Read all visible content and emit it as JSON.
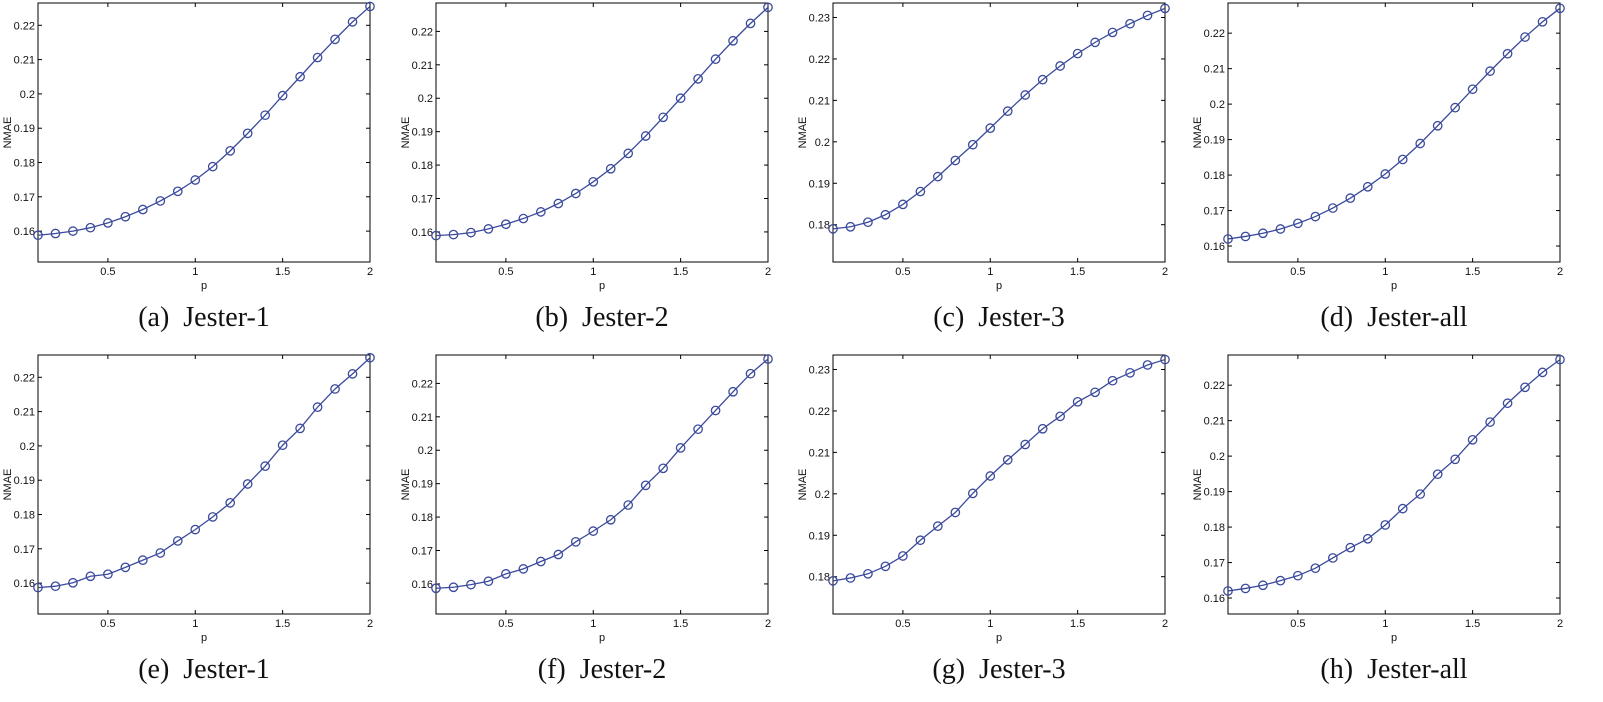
{
  "chart_data": [
    {
      "type": "line",
      "caption": "(a)  Jester-1",
      "xlabel": "p",
      "ylabel": "NMAE",
      "xlim": [
        0.1,
        2.0
      ],
      "ylim": [
        0.151,
        0.2265
      ],
      "xticks": [
        0.5,
        1,
        1.5,
        2
      ],
      "xtick_labels": [
        "0.5",
        "1",
        "1.5",
        "2"
      ],
      "yticks": [
        0.16,
        0.17,
        0.18,
        0.19,
        0.2,
        0.21,
        0.22
      ],
      "ytick_labels": [
        "0.16",
        "0.17",
        "0.18",
        "0.19",
        "0.2",
        "0.21",
        "0.22"
      ],
      "marker": "circle",
      "color": "#3b4a9c",
      "series": [
        {
          "x": [
            0.1,
            0.2,
            0.3,
            0.4,
            0.5,
            0.6,
            0.7,
            0.8,
            0.9,
            1.0,
            1.1,
            1.2,
            1.3,
            1.4,
            1.5,
            1.6,
            1.7,
            1.8,
            1.9,
            2.0
          ],
          "values": [
            0.1588,
            0.1593,
            0.16,
            0.161,
            0.1624,
            0.1642,
            0.1663,
            0.1688,
            0.1716,
            0.1749,
            0.1788,
            0.1834,
            0.1885,
            0.1938,
            0.1995,
            0.205,
            0.2106,
            0.2159,
            0.221,
            0.2255
          ]
        }
      ]
    },
    {
      "type": "line",
      "caption": "(b)  Jester-2",
      "xlabel": "p",
      "ylabel": "NMAE",
      "xlim": [
        0.1,
        2.0
      ],
      "ylim": [
        0.151,
        0.2285
      ],
      "xticks": [
        0.5,
        1,
        1.5,
        2
      ],
      "xtick_labels": [
        "0.5",
        "1",
        "1.5",
        "2"
      ],
      "yticks": [
        0.16,
        0.17,
        0.18,
        0.19,
        0.2,
        0.21,
        0.22
      ],
      "ytick_labels": [
        "0.16",
        "0.17",
        "0.18",
        "0.19",
        "0.2",
        "0.21",
        "0.22"
      ],
      "marker": "circle",
      "color": "#3b4a9c",
      "series": [
        {
          "x": [
            0.1,
            0.2,
            0.3,
            0.4,
            0.5,
            0.6,
            0.7,
            0.8,
            0.9,
            1.0,
            1.1,
            1.2,
            1.3,
            1.4,
            1.5,
            1.6,
            1.7,
            1.8,
            1.9,
            2.0
          ],
          "values": [
            0.1589,
            0.1592,
            0.1598,
            0.1609,
            0.1623,
            0.164,
            0.166,
            0.1685,
            0.1715,
            0.175,
            0.1789,
            0.1835,
            0.1887,
            0.1943,
            0.2,
            0.2058,
            0.2117,
            0.2172,
            0.2224,
            0.2272
          ]
        }
      ]
    },
    {
      "type": "line",
      "caption": "(c)  Jester-3",
      "xlabel": "p",
      "ylabel": "NMAE",
      "xlim": [
        0.1,
        2.0
      ],
      "ylim": [
        0.171,
        0.2335
      ],
      "xticks": [
        0.5,
        1,
        1.5,
        2
      ],
      "xtick_labels": [
        "0.5",
        "1",
        "1.5",
        "2"
      ],
      "yticks": [
        0.18,
        0.19,
        0.2,
        0.21,
        0.22,
        0.23
      ],
      "ytick_labels": [
        "0.18",
        "0.19",
        "0.2",
        "0.21",
        "0.22",
        "0.23"
      ],
      "marker": "circle",
      "color": "#3b4a9c",
      "series": [
        {
          "x": [
            0.1,
            0.2,
            0.3,
            0.4,
            0.5,
            0.6,
            0.7,
            0.8,
            0.9,
            1.0,
            1.1,
            1.2,
            1.3,
            1.4,
            1.5,
            1.6,
            1.7,
            1.8,
            1.9,
            2.0
          ],
          "values": [
            0.179,
            0.1795,
            0.1806,
            0.1824,
            0.1849,
            0.188,
            0.1916,
            0.1955,
            0.1993,
            0.2033,
            0.2074,
            0.2113,
            0.215,
            0.2183,
            0.2213,
            0.224,
            0.2264,
            0.2285,
            0.2305,
            0.2322
          ]
        }
      ]
    },
    {
      "type": "line",
      "caption": "(d)  Jester-all",
      "xlabel": "p",
      "ylabel": "NMAE",
      "xlim": [
        0.1,
        2.0
      ],
      "ylim": [
        0.1555,
        0.2285
      ],
      "xticks": [
        0.5,
        1,
        1.5,
        2
      ],
      "xtick_labels": [
        "0.5",
        "1",
        "1.5",
        "2"
      ],
      "yticks": [
        0.16,
        0.17,
        0.18,
        0.19,
        0.2,
        0.21,
        0.22
      ],
      "ytick_labels": [
        "0.16",
        "0.17",
        "0.18",
        "0.19",
        "0.2",
        "0.21",
        "0.22"
      ],
      "marker": "circle",
      "color": "#3b4a9c",
      "series": [
        {
          "x": [
            0.1,
            0.2,
            0.3,
            0.4,
            0.5,
            0.6,
            0.7,
            0.8,
            0.9,
            1.0,
            1.1,
            1.2,
            1.3,
            1.4,
            1.5,
            1.6,
            1.7,
            1.8,
            1.9,
            2.0
          ],
          "values": [
            0.162,
            0.1627,
            0.1636,
            0.1648,
            0.1664,
            0.1683,
            0.1707,
            0.1735,
            0.1767,
            0.1803,
            0.1844,
            0.1889,
            0.1939,
            0.199,
            0.2042,
            0.2093,
            0.2142,
            0.2189,
            0.2232,
            0.227
          ]
        }
      ]
    },
    {
      "type": "line",
      "caption": "(e)  Jester-1",
      "xlabel": "p",
      "ylabel": "NMAE",
      "xlim": [
        0.1,
        2.0
      ],
      "ylim": [
        0.151,
        0.2265
      ],
      "xticks": [
        0.5,
        1,
        1.5,
        2
      ],
      "xtick_labels": [
        "0.5",
        "1",
        "1.5",
        "2"
      ],
      "yticks": [
        0.16,
        0.17,
        0.18,
        0.19,
        0.2,
        0.21,
        0.22
      ],
      "ytick_labels": [
        "0.16",
        "0.17",
        "0.18",
        "0.19",
        "0.2",
        "0.21",
        "0.22"
      ],
      "marker": "circle",
      "color": "#3b4a9c",
      "series": [
        {
          "x": [
            0.1,
            0.2,
            0.3,
            0.4,
            0.5,
            0.6,
            0.7,
            0.8,
            0.9,
            1.0,
            1.1,
            1.2,
            1.3,
            1.4,
            1.5,
            1.6,
            1.7,
            1.8,
            1.9,
            2.0
          ],
          "values": [
            0.1587,
            0.1591,
            0.1601,
            0.162,
            0.1626,
            0.1646,
            0.1667,
            0.1688,
            0.1723,
            0.1756,
            0.1793,
            0.1834,
            0.1889,
            0.1941,
            0.2002,
            0.2051,
            0.2113,
            0.2166,
            0.221,
            0.2257
          ]
        }
      ]
    },
    {
      "type": "line",
      "caption": "(f)  Jester-2",
      "xlabel": "p",
      "ylabel": "NMAE",
      "xlim": [
        0.1,
        2.0
      ],
      "ylim": [
        0.151,
        0.2285
      ],
      "xticks": [
        0.5,
        1,
        1.5,
        2
      ],
      "xtick_labels": [
        "0.5",
        "1",
        "1.5",
        "2"
      ],
      "yticks": [
        0.16,
        0.17,
        0.18,
        0.19,
        0.2,
        0.21,
        0.22
      ],
      "ytick_labels": [
        "0.16",
        "0.17",
        "0.18",
        "0.19",
        "0.2",
        "0.21",
        "0.22"
      ],
      "marker": "circle",
      "color": "#3b4a9c",
      "series": [
        {
          "x": [
            0.1,
            0.2,
            0.3,
            0.4,
            0.5,
            0.6,
            0.7,
            0.8,
            0.9,
            1.0,
            1.1,
            1.2,
            1.3,
            1.4,
            1.5,
            1.6,
            1.7,
            1.8,
            1.9,
            2.0
          ],
          "values": [
            0.1587,
            0.159,
            0.1598,
            0.1608,
            0.163,
            0.1645,
            0.1667,
            0.1688,
            0.1726,
            0.1758,
            0.1792,
            0.1836,
            0.1895,
            0.1946,
            0.2007,
            0.2063,
            0.2119,
            0.2175,
            0.2229,
            0.2273
          ]
        }
      ]
    },
    {
      "type": "line",
      "caption": "(g)  Jester-3",
      "xlabel": "p",
      "ylabel": "NMAE",
      "xlim": [
        0.1,
        2.0
      ],
      "ylim": [
        0.171,
        0.2335
      ],
      "xticks": [
        0.5,
        1,
        1.5,
        2
      ],
      "xtick_labels": [
        "0.5",
        "1",
        "1.5",
        "2"
      ],
      "yticks": [
        0.18,
        0.19,
        0.2,
        0.21,
        0.22,
        0.23
      ],
      "ytick_labels": [
        "0.18",
        "0.19",
        "0.2",
        "0.21",
        "0.22",
        "0.23"
      ],
      "marker": "circle",
      "color": "#3b4a9c",
      "series": [
        {
          "x": [
            0.1,
            0.2,
            0.3,
            0.4,
            0.5,
            0.6,
            0.7,
            0.8,
            0.9,
            1.0,
            1.1,
            1.2,
            1.3,
            1.4,
            1.5,
            1.6,
            1.7,
            1.8,
            1.9,
            2.0
          ],
          "values": [
            0.179,
            0.1797,
            0.1807,
            0.1825,
            0.185,
            0.1888,
            0.1922,
            0.1955,
            0.2001,
            0.2043,
            0.2082,
            0.2119,
            0.2157,
            0.2187,
            0.2222,
            0.2245,
            0.2273,
            0.2292,
            0.2311,
            0.2324
          ]
        }
      ]
    },
    {
      "type": "line",
      "caption": "(h)  Jester-all",
      "xlabel": "p",
      "ylabel": "NMAE",
      "xlim": [
        0.1,
        2.0
      ],
      "ylim": [
        0.1555,
        0.2285
      ],
      "xticks": [
        0.5,
        1,
        1.5,
        2
      ],
      "xtick_labels": [
        "0.5",
        "1",
        "1.5",
        "2"
      ],
      "yticks": [
        0.16,
        0.17,
        0.18,
        0.19,
        0.2,
        0.21,
        0.22
      ],
      "ytick_labels": [
        "0.16",
        "0.17",
        "0.18",
        "0.19",
        "0.2",
        "0.21",
        "0.22"
      ],
      "marker": "circle",
      "color": "#3b4a9c",
      "series": [
        {
          "x": [
            0.1,
            0.2,
            0.3,
            0.4,
            0.5,
            0.6,
            0.7,
            0.8,
            0.9,
            1.0,
            1.1,
            1.2,
            1.3,
            1.4,
            1.5,
            1.6,
            1.7,
            1.8,
            1.9,
            2.0
          ],
          "values": [
            0.162,
            0.1627,
            0.1636,
            0.1649,
            0.1663,
            0.1684,
            0.1713,
            0.1742,
            0.1767,
            0.1806,
            0.1852,
            0.1893,
            0.1949,
            0.1991,
            0.2046,
            0.2096,
            0.2149,
            0.2194,
            0.2236,
            0.2272
          ]
        }
      ]
    }
  ]
}
